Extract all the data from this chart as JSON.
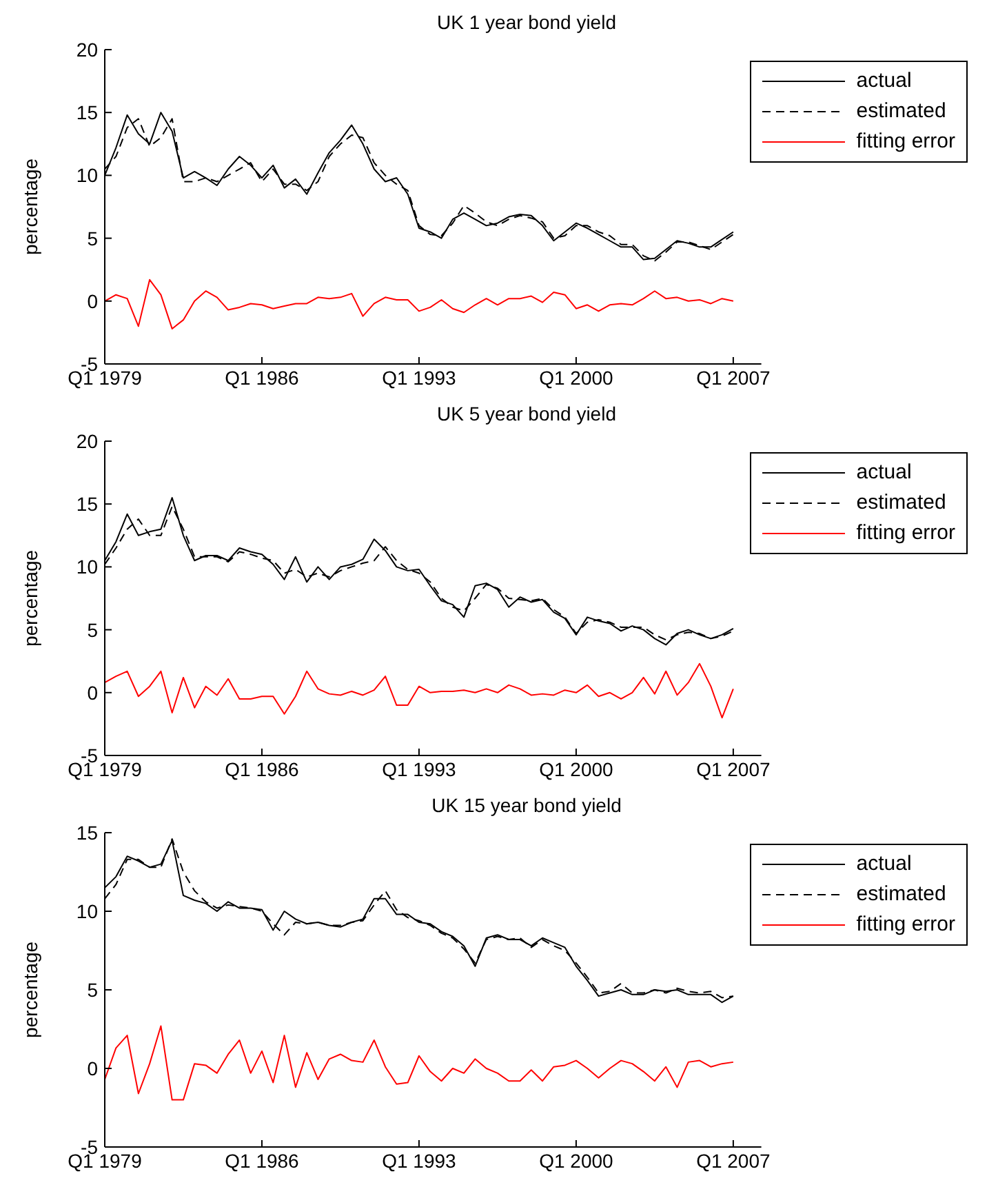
{
  "chart_data": [
    {
      "type": "line",
      "title": "UK 1 year bond yield",
      "ylabel": "percentage",
      "categories": [
        "Q1 1979",
        null,
        null,
        null,
        null,
        null,
        null,
        null,
        null,
        null,
        null,
        null,
        null,
        null,
        "Q1 1986",
        null,
        null,
        null,
        null,
        null,
        null,
        null,
        null,
        null,
        null,
        null,
        null,
        null,
        "Q1 1993",
        null,
        null,
        null,
        null,
        null,
        null,
        null,
        null,
        null,
        null,
        null,
        null,
        null,
        "Q1 2000",
        null,
        null,
        null,
        null,
        null,
        null,
        null,
        null,
        null,
        null,
        null,
        null,
        null,
        "Q1 2007"
      ],
      "ylim": [
        -5,
        20
      ],
      "yticks": [
        -5,
        0,
        5,
        10,
        15,
        20
      ],
      "grid": false,
      "legend": "top right",
      "series": [
        {
          "name": "actual",
          "color": "#000000",
          "line_style": "solid",
          "values": [
            10,
            12.2,
            14.8,
            13.3,
            12.5,
            15,
            13.5,
            9.8,
            10.3,
            9.8,
            9.2,
            10.5,
            11.5,
            10.8,
            9.8,
            10.8,
            9,
            9.7,
            8.5,
            10.2,
            11.8,
            12.8,
            14,
            12.5,
            10.5,
            9.5,
            9.8,
            8.5,
            5.8,
            5.5,
            5,
            6.5,
            7,
            6.5,
            6,
            6.2,
            6.7,
            6.9,
            6.8,
            6,
            4.8,
            5.5,
            6.2,
            5.8,
            5.3,
            4.8,
            4.3,
            4.3,
            3.3,
            3.4,
            4.1,
            4.8,
            4.6,
            4.3,
            4.3,
            4.9,
            5.5
          ]
        },
        {
          "name": "estimated",
          "color": "#000000",
          "line_style": "dashed",
          "values": [
            10.5,
            11.5,
            13.8,
            14.5,
            12.3,
            13,
            14.5,
            9.5,
            9.5,
            9.8,
            9.5,
            10,
            10.5,
            11,
            9.5,
            10.5,
            9.3,
            9.3,
            8.8,
            9.5,
            11.5,
            12.5,
            13.2,
            13,
            11,
            10,
            9.3,
            8.8,
            6,
            5.3,
            5.2,
            6.2,
            7.6,
            7,
            6.3,
            6,
            6.5,
            6.8,
            6.6,
            6.3,
            5,
            5.2,
            6,
            6,
            5.5,
            5.2,
            4.5,
            4.5,
            3.6,
            3.2,
            3.9,
            4.7,
            4.7,
            4.4,
            4.1,
            4.7,
            5.3
          ]
        },
        {
          "name": "fitting error",
          "color": "#ff0000",
          "line_style": "solid",
          "values": [
            0,
            0.5,
            0.2,
            -2,
            1.7,
            0.5,
            -2.2,
            -1.5,
            0,
            0.8,
            0.3,
            -0.7,
            -0.5,
            -0.2,
            -0.3,
            -0.6,
            -0.4,
            -0.2,
            -0.2,
            0.3,
            0.2,
            0.3,
            0.6,
            -1.2,
            -0.2,
            0.3,
            0.1,
            0.1,
            -0.8,
            -0.5,
            0.1,
            -0.6,
            -0.9,
            -0.3,
            0.2,
            -0.3,
            0.2,
            0.2,
            0.4,
            -0.1,
            0.7,
            0.5,
            -0.6,
            -0.3,
            -0.8,
            -0.3,
            -0.2,
            -0.3,
            0.2,
            0.8,
            0.2,
            0.3,
            0,
            0.1,
            -0.2,
            0.2,
            0
          ]
        }
      ]
    },
    {
      "type": "line",
      "title": "UK 5 year bond yield",
      "ylabel": "percentage",
      "categories": [
        "Q1 1979",
        null,
        null,
        null,
        null,
        null,
        null,
        null,
        null,
        null,
        null,
        null,
        null,
        null,
        "Q1 1986",
        null,
        null,
        null,
        null,
        null,
        null,
        null,
        null,
        null,
        null,
        null,
        null,
        null,
        "Q1 1993",
        null,
        null,
        null,
        null,
        null,
        null,
        null,
        null,
        null,
        null,
        null,
        null,
        null,
        "Q1 2000",
        null,
        null,
        null,
        null,
        null,
        null,
        null,
        null,
        null,
        null,
        null,
        null,
        null,
        "Q1 2007"
      ],
      "ylim": [
        -5,
        20
      ],
      "yticks": [
        -5,
        0,
        5,
        10,
        15,
        20
      ],
      "grid": false,
      "legend": "top right",
      "series": [
        {
          "name": "actual",
          "color": "#000000",
          "line_style": "solid",
          "values": [
            10.5,
            12,
            14.2,
            12.5,
            12.8,
            13,
            15.5,
            12.5,
            10.5,
            10.9,
            10.9,
            10.5,
            11.5,
            11.2,
            11,
            10.2,
            9,
            10.8,
            8.8,
            10,
            9,
            10,
            10.2,
            10.6,
            12.2,
            11.3,
            10,
            9.7,
            9.8,
            8.5,
            7.3,
            7,
            6,
            8.5,
            8.7,
            8.2,
            6.8,
            7.6,
            7.2,
            7.4,
            6.4,
            5.9,
            4.6,
            6,
            5.7,
            5.5,
            4.9,
            5.3,
            5,
            4.3,
            3.8,
            4.7,
            5,
            4.6,
            4.3,
            4.6,
            5.1
          ]
        },
        {
          "name": "estimated",
          "color": "#000000",
          "line_style": "dashed",
          "values": [
            10.2,
            11.5,
            13,
            13.8,
            12.5,
            12.5,
            14.8,
            13,
            10.8,
            10.8,
            10.8,
            10.4,
            11.2,
            11,
            10.7,
            10.5,
            9.5,
            9.8,
            9.2,
            9.5,
            9.2,
            9.7,
            10,
            10.3,
            10.5,
            11.6,
            10.5,
            9.8,
            9.5,
            8.8,
            7.5,
            6.8,
            6.5,
            7.5,
            8.6,
            8.3,
            7.5,
            7.4,
            7.3,
            7.5,
            6.6,
            6,
            4.7,
            5.6,
            5.8,
            5.6,
            5.2,
            5.2,
            5.2,
            4.6,
            4.2,
            4.6,
            4.8,
            4.7,
            4.3,
            4.5,
            4.9
          ]
        },
        {
          "name": "fitting error",
          "color": "#ff0000",
          "line_style": "solid",
          "values": [
            0.8,
            1.3,
            1.7,
            -0.3,
            0.5,
            1.7,
            -1.6,
            1.2,
            -1.2,
            0.5,
            -0.2,
            1.1,
            -0.5,
            -0.5,
            -0.3,
            -0.3,
            -1.7,
            -0.3,
            1.7,
            0.3,
            -0.1,
            -0.2,
            0.1,
            -0.2,
            0.2,
            1.3,
            -1,
            -1,
            0.5,
            0,
            0.1,
            0.1,
            0.2,
            0,
            0.3,
            0,
            0.6,
            0.3,
            -0.2,
            -0.1,
            -0.2,
            0.2,
            0,
            0.6,
            -0.3,
            0,
            -0.5,
            0,
            1.2,
            -0.1,
            1.7,
            -0.2,
            0.8,
            2.3,
            0.5,
            -2,
            0.3
          ]
        }
      ]
    },
    {
      "type": "line",
      "title": "UK 15 year bond yield",
      "ylabel": "percentage",
      "categories": [
        "Q1 1979",
        null,
        null,
        null,
        null,
        null,
        null,
        null,
        null,
        null,
        null,
        null,
        null,
        null,
        "Q1 1986",
        null,
        null,
        null,
        null,
        null,
        null,
        null,
        null,
        null,
        null,
        null,
        null,
        null,
        "Q1 1993",
        null,
        null,
        null,
        null,
        null,
        null,
        null,
        null,
        null,
        null,
        null,
        null,
        null,
        "Q1 2000",
        null,
        null,
        null,
        null,
        null,
        null,
        null,
        null,
        null,
        null,
        null,
        null,
        null,
        "Q1 2007"
      ],
      "ylim": [
        -5,
        15
      ],
      "yticks": [
        -5,
        0,
        5,
        10,
        15
      ],
      "grid": false,
      "legend": "top right",
      "series": [
        {
          "name": "actual",
          "color": "#000000",
          "line_style": "solid",
          "values": [
            11.5,
            12.2,
            13.5,
            13.2,
            12.8,
            13,
            14.5,
            11,
            10.7,
            10.5,
            10,
            10.6,
            10.2,
            10.2,
            10.1,
            8.8,
            10,
            9.5,
            9.2,
            9.3,
            9.1,
            9,
            9.3,
            9.5,
            10.8,
            10.8,
            9.8,
            9.8,
            9.3,
            9.2,
            8.7,
            8.4,
            7.8,
            6.5,
            8.3,
            8.5,
            8.2,
            8.2,
            7.8,
            8.3,
            8,
            7.7,
            6.5,
            5.6,
            4.6,
            4.8,
            5,
            4.7,
            4.7,
            5,
            4.9,
            5,
            4.7,
            4.7,
            4.7,
            4.2,
            4.6
          ]
        },
        {
          "name": "estimated",
          "color": "#000000",
          "line_style": "dashed",
          "values": [
            10.8,
            11.7,
            13.3,
            13.3,
            12.8,
            12.8,
            14.6,
            12.5,
            11.3,
            10.6,
            10.2,
            10.4,
            10.3,
            10.2,
            10,
            9.2,
            8.5,
            9.3,
            9.2,
            9.3,
            9.1,
            9.1,
            9.3,
            9.4,
            10.4,
            11.3,
            10.1,
            9.6,
            9.4,
            9.1,
            8.6,
            8.3,
            7.6,
            6.7,
            8.2,
            8.4,
            8.2,
            8.3,
            7.7,
            8.2,
            7.8,
            7.5,
            6.7,
            5.8,
            4.8,
            4.9,
            5.4,
            4.8,
            4.8,
            5,
            4.8,
            5.1,
            4.9,
            4.8,
            4.9,
            4.5,
            4.6
          ]
        },
        {
          "name": "fitting error",
          "color": "#ff0000",
          "line_style": "solid",
          "values": [
            -0.7,
            1.3,
            2.1,
            -1.6,
            0.3,
            2.7,
            -2,
            -2,
            0.3,
            0.2,
            -0.3,
            0.9,
            1.8,
            -0.3,
            1.1,
            -0.9,
            2.1,
            -1.2,
            1,
            -0.7,
            0.6,
            0.9,
            0.5,
            0.4,
            1.8,
            0.1,
            -1,
            -0.9,
            0.8,
            -0.2,
            -0.8,
            0,
            -0.3,
            0.6,
            0,
            -0.3,
            -0.8,
            -0.8,
            -0.1,
            -0.8,
            0.1,
            0.2,
            0.5,
            0,
            -0.6,
            0,
            0.5,
            0.3,
            -0.2,
            -0.8,
            0.1,
            -1.2,
            0.4,
            0.5,
            0.1,
            0.3,
            0.4
          ]
        }
      ]
    }
  ]
}
